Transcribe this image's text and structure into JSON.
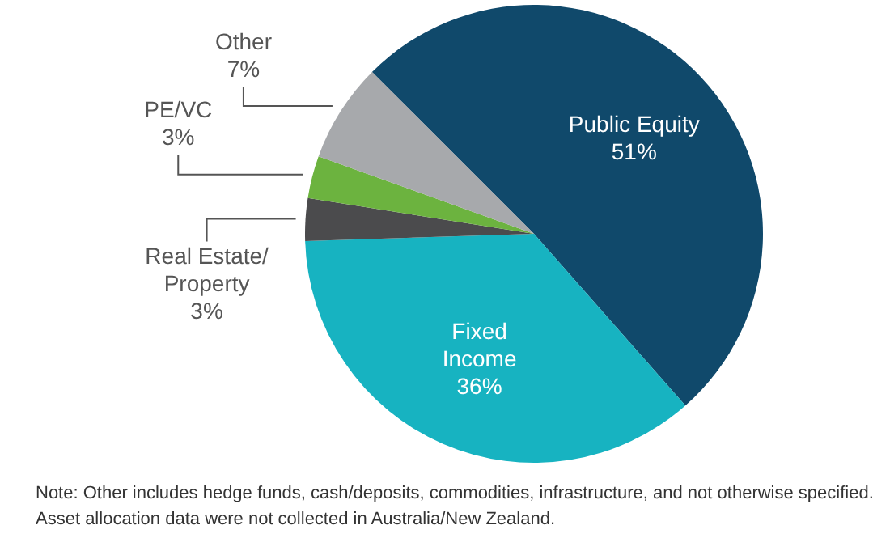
{
  "chart_data": {
    "type": "pie",
    "categories": [
      "Public Equity",
      "Fixed Income",
      "Real Estate/ Property",
      "PE/VC",
      "Other"
    ],
    "values": [
      51,
      36,
      3,
      3,
      7
    ],
    "value_labels": [
      "51%",
      "36%",
      "3%",
      "3%",
      "7%"
    ],
    "colors": [
      "#10496b",
      "#17b3c1",
      "#4b4b4d",
      "#6cb33f",
      "#a7a9ac"
    ],
    "legend": false,
    "annotations": [
      "Note: Other includes hedge funds, cash/deposits, commodities, infrastructure, and not otherwise specified. Asset allocation data were not collected in Australia/New Zealand."
    ]
  }
}
